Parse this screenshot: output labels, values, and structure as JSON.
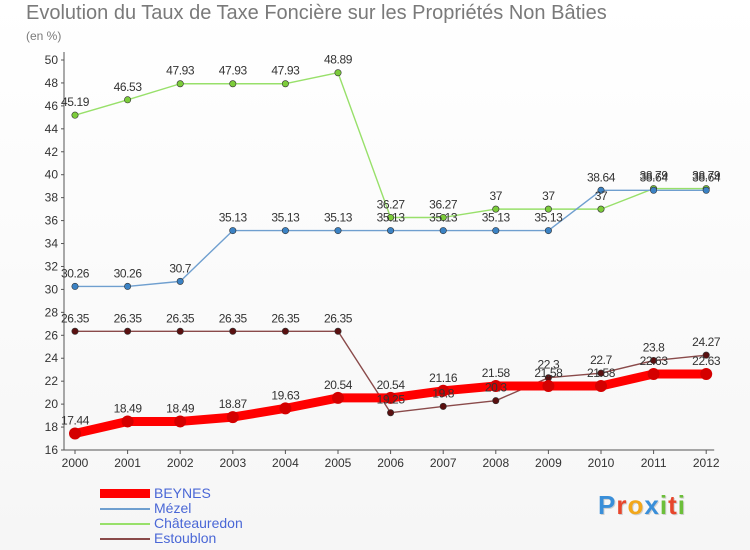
{
  "header": {
    "title": "Evolution du Taux de Taxe Foncière sur les Propriétés Non Bâties",
    "subtitle": "(en %)"
  },
  "logo": {
    "letters": [
      "P",
      "r",
      "o",
      "x",
      "i",
      "t",
      "i"
    ],
    "colors": [
      "#3a8fd9",
      "#e7462c",
      "#f2a71b",
      "#3a8fd9",
      "#6cbf3a",
      "#e7462c",
      "#6cbf3a"
    ]
  },
  "chart_data": {
    "type": "line",
    "title": "Evolution du Taux de Taxe Foncière sur les Propriétés Non Bâties",
    "ylabel": "(en %)",
    "categories": [
      "2000",
      "2001",
      "2002",
      "2003",
      "2004",
      "2005",
      "2006",
      "2007",
      "2008",
      "2009",
      "2010",
      "2011",
      "2012"
    ],
    "ylim": [
      16,
      50
    ],
    "yticks": [
      16,
      18,
      20,
      22,
      24,
      26,
      28,
      30,
      32,
      34,
      36,
      38,
      40,
      42,
      44,
      46,
      48,
      50
    ],
    "grid": false,
    "legend_position": "bottom-left",
    "series": [
      {
        "name": "BEYNES",
        "color": "#ff0000",
        "marker_color": "#d40000",
        "values": [
          17.44,
          18.49,
          18.49,
          18.87,
          19.63,
          20.54,
          20.54,
          21.16,
          21.58,
          21.58,
          21.58,
          22.63,
          22.63
        ],
        "labels": [
          "17.44",
          "18.49",
          "18.49",
          "18.87",
          "19.63",
          "20.54",
          "20.54",
          "21.16",
          "21.58",
          "21.58",
          "21.58",
          "22.63",
          "22.63"
        ]
      },
      {
        "name": "Mézel",
        "color": "#6f9fcf",
        "marker_color": "#3b82c4",
        "values": [
          30.26,
          30.26,
          30.7,
          35.13,
          35.13,
          35.13,
          35.13,
          35.13,
          35.13,
          35.13,
          38.64,
          38.64,
          38.64
        ],
        "labels": [
          "30.26",
          "30.26",
          "30.7",
          "35.13",
          "35.13",
          "35.13",
          "35.13",
          "35.13",
          "35.13",
          "35.13",
          "38.64",
          "38.64",
          "38.64"
        ]
      },
      {
        "name": "Châteauredon",
        "color": "#98e06a",
        "marker_color": "#7ccc3a",
        "values": [
          45.19,
          46.53,
          47.93,
          47.93,
          47.93,
          48.89,
          36.27,
          36.27,
          37,
          37,
          37,
          38.79,
          38.79
        ],
        "labels": [
          "45.19",
          "46.53",
          "47.93",
          "47.93",
          "47.93",
          "48.89",
          "36.27",
          "36.27",
          "37",
          "37",
          "37",
          "38.79",
          "38.79"
        ]
      },
      {
        "name": "Estoublon",
        "color": "#8a4a4a",
        "marker_color": "#5a1010",
        "values": [
          26.35,
          26.35,
          26.35,
          26.35,
          26.35,
          26.35,
          19.25,
          19.8,
          20.3,
          22.3,
          22.7,
          23.8,
          24.27
        ],
        "labels": [
          "26.35",
          "26.35",
          "26.35",
          "26.35",
          "26.35",
          "26.35",
          "19.25",
          "19.8",
          "20.3",
          "22.3",
          "22.7",
          "23.8",
          "24.27"
        ]
      }
    ]
  }
}
